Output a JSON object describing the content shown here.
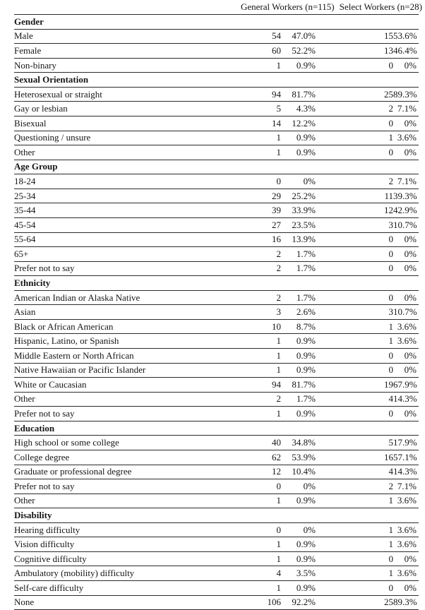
{
  "page": {
    "background_color": "#ffffff",
    "text_color": "#161616",
    "rule_color": "#2b2b2b"
  },
  "table": {
    "group_headers": [
      {
        "label": "General Workers (n=115)"
      },
      {
        "label": "Select Workers (n=28)"
      }
    ],
    "value_column_names": [
      "gw-count",
      "gw-percent",
      "sw-count",
      "sw-percent"
    ],
    "sections": [
      {
        "title": "Gender",
        "rows": [
          {
            "label": "Male",
            "values": [
              "54",
              "47.0%",
              "15",
              "53.6%"
            ]
          },
          {
            "label": "Female",
            "values": [
              "60",
              "52.2%",
              "13",
              "46.4%"
            ]
          },
          {
            "label": "Non-binary",
            "values": [
              "1",
              "0.9%",
              "0",
              "0%"
            ]
          }
        ]
      },
      {
        "title": "Sexual Orientation",
        "rows": [
          {
            "label": "Heterosexual or straight",
            "values": [
              "94",
              "81.7%",
              "25",
              "89.3%"
            ]
          },
          {
            "label": "Gay or lesbian",
            "values": [
              "5",
              "4.3%",
              "2",
              "7.1%"
            ]
          },
          {
            "label": "Bisexual",
            "values": [
              "14",
              "12.2%",
              "0",
              "0%"
            ]
          },
          {
            "label": "Questioning / unsure",
            "values": [
              "1",
              "0.9%",
              "1",
              "3.6%"
            ]
          },
          {
            "label": "Other",
            "values": [
              "1",
              "0.9%",
              "0",
              "0%"
            ]
          }
        ]
      },
      {
        "title": "Age Group",
        "rows": [
          {
            "label": "18-24",
            "values": [
              "0",
              "0%",
              "2",
              "7.1%"
            ]
          },
          {
            "label": "25-34",
            "values": [
              "29",
              "25.2%",
              "11",
              "39.3%"
            ]
          },
          {
            "label": "35-44",
            "values": [
              "39",
              "33.9%",
              "12",
              "42.9%"
            ]
          },
          {
            "label": "45-54",
            "values": [
              "27",
              "23.5%",
              "3",
              "10.7%"
            ]
          },
          {
            "label": "55-64",
            "values": [
              "16",
              "13.9%",
              "0",
              "0%"
            ]
          },
          {
            "label": "65+",
            "values": [
              "2",
              "1.7%",
              "0",
              "0%"
            ]
          },
          {
            "label": "Prefer not to say",
            "values": [
              "2",
              "1.7%",
              "0",
              "0%"
            ]
          }
        ]
      },
      {
        "title": "Ethnicity",
        "rows": [
          {
            "label": "American Indian or Alaska Native",
            "values": [
              "2",
              "1.7%",
              "0",
              "0%"
            ]
          },
          {
            "label": "Asian",
            "values": [
              "3",
              "2.6%",
              "3",
              "10.7%"
            ]
          },
          {
            "label": "Black or African American",
            "values": [
              "10",
              "8.7%",
              "1",
              "3.6%"
            ]
          },
          {
            "label": "Hispanic, Latino, or Spanish",
            "values": [
              "1",
              "0.9%",
              "1",
              "3.6%"
            ]
          },
          {
            "label": "Middle Eastern or North African",
            "values": [
              "1",
              "0.9%",
              "0",
              "0%"
            ]
          },
          {
            "label": "Native Hawaiian or Pacific Islander",
            "values": [
              "1",
              "0.9%",
              "0",
              "0%"
            ]
          },
          {
            "label": "White or Caucasian",
            "values": [
              "94",
              "81.7%",
              "19",
              "67.9%"
            ]
          },
          {
            "label": "Other",
            "values": [
              "2",
              "1.7%",
              "4",
              "14.3%"
            ]
          },
          {
            "label": "Prefer not to say",
            "values": [
              "1",
              "0.9%",
              "0",
              "0%"
            ]
          }
        ]
      },
      {
        "title": "Education",
        "rows": [
          {
            "label": "High school or some college",
            "values": [
              "40",
              "34.8%",
              "5",
              "17.9%"
            ]
          },
          {
            "label": "College degree",
            "values": [
              "62",
              "53.9%",
              "16",
              "57.1%"
            ]
          },
          {
            "label": "Graduate or professional degree",
            "values": [
              "12",
              "10.4%",
              "4",
              "14.3%"
            ]
          },
          {
            "label": "Prefer not to say",
            "values": [
              "0",
              "0%",
              "2",
              "7.1%"
            ]
          },
          {
            "label": "Other",
            "values": [
              "1",
              "0.9%",
              "1",
              "3.6%"
            ]
          }
        ]
      },
      {
        "title": "Disability",
        "rows": [
          {
            "label": "Hearing difficulty",
            "values": [
              "0",
              "0%",
              "1",
              "3.6%"
            ]
          },
          {
            "label": "Vision difficulty",
            "values": [
              "1",
              "0.9%",
              "1",
              "3.6%"
            ]
          },
          {
            "label": "Cognitive difficulty",
            "values": [
              "1",
              "0.9%",
              "0",
              "0%"
            ]
          },
          {
            "label": "Ambulatory (mobility) difficulty",
            "values": [
              "4",
              "3.5%",
              "1",
              "3.6%"
            ]
          },
          {
            "label": "Self-care difficulty",
            "values": [
              "1",
              "0.9%",
              "0",
              "0%"
            ]
          },
          {
            "label": "None",
            "values": [
              "106",
              "92.2%",
              "25",
              "89.3%"
            ]
          }
        ]
      }
    ]
  }
}
